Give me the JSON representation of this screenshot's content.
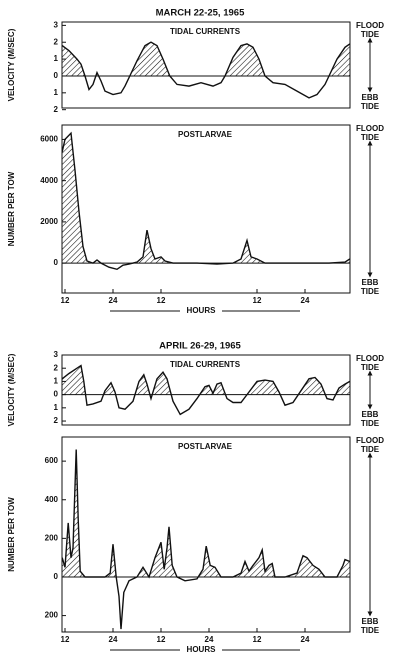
{
  "chart_data": [
    {
      "type": "area",
      "title": "MARCH 22-25, 1965",
      "label": "TIDAL CURRENTS",
      "ylabel": "VELOCITY (M/SEC)",
      "flood_label": [
        "FLOOD",
        "TIDE"
      ],
      "ebb_label": [
        "EBB",
        "TIDE"
      ],
      "x": [
        11.3,
        13,
        15,
        16,
        17,
        18,
        19,
        20,
        21,
        22,
        24,
        26,
        27,
        28.2,
        30,
        32,
        33.5,
        35,
        36.5,
        38.2,
        40,
        43,
        46,
        49,
        51,
        52,
        54,
        56,
        57.5,
        59,
        60.5,
        62,
        64,
        67,
        70,
        73,
        75,
        77,
        78,
        80,
        82,
        83.2
      ],
      "values": [
        1.8,
        1.5,
        1.0,
        0.7,
        0,
        -0.8,
        -0.5,
        0.2,
        -0.3,
        -0.9,
        -1.1,
        -1.0,
        -0.6,
        0,
        0.9,
        1.8,
        2.0,
        1.8,
        1.0,
        0,
        -0.5,
        -0.6,
        -0.4,
        -0.6,
        -0.4,
        0,
        1.1,
        1.8,
        1.9,
        1.7,
        1.0,
        0,
        -0.4,
        -0.5,
        -0.9,
        -1.3,
        -1.1,
        -0.5,
        0,
        1.0,
        1.7,
        1.9
      ],
      "xlim": [
        11.25,
        83.25
      ],
      "ylim": [
        -1.9,
        3.2
      ],
      "yticks": [
        3,
        2,
        1,
        0,
        {
          "value": -1,
          "label": "1"
        },
        {
          "value": -2,
          "label": "2"
        }
      ]
    },
    {
      "type": "area",
      "label": "POSTLARVAE",
      "ylabel": "NUMBER PER TOW",
      "xlabel": "HOURS",
      "flood_label": [
        "FLOOD",
        "TIDE"
      ],
      "ebb_label": [
        "EBB",
        "TIDE"
      ],
      "x": [
        11.3,
        12,
        13.5,
        14.5,
        15.5,
        16.5,
        17.5,
        19,
        20,
        21,
        23,
        25,
        26.5,
        28,
        30,
        31.5,
        32.5,
        33.5,
        34.5,
        36,
        37,
        39,
        45,
        50,
        54,
        56,
        57.5,
        58.5,
        60,
        62,
        66,
        72,
        78,
        82,
        83.2
      ],
      "values": [
        5400,
        6000,
        6300,
        4500,
        2500,
        800,
        100,
        0,
        150,
        0,
        -200,
        -300,
        -100,
        -50,
        50,
        300,
        1600,
        700,
        200,
        300,
        100,
        0,
        0,
        -50,
        0,
        200,
        1100,
        300,
        200,
        0,
        0,
        0,
        0,
        50,
        200
      ],
      "xlim": [
        11.25,
        83.25
      ],
      "ylim": [
        -1450,
        6700
      ],
      "yticks": [
        6000,
        4000,
        2000,
        0
      ],
      "xticks": [
        {
          "value": 12,
          "label": "12"
        },
        {
          "value": 24,
          "label": "24"
        },
        {
          "value": 36,
          "label": "12"
        },
        {
          "value": 60,
          "label": "12"
        },
        {
          "value": 72,
          "label": "24"
        }
      ]
    },
    {
      "type": "area",
      "title": "APRIL 26-29, 1965",
      "label": "TIDAL CURRENTS",
      "ylabel": "VELOCITY (M/SEC)",
      "flood_label": [
        "FLOOD",
        "TIDE"
      ],
      "ebb_label": [
        "EBB",
        "TIDE"
      ],
      "x": [
        11.3,
        13,
        15,
        16,
        16.7,
        17.5,
        19,
        21,
        22,
        23.5,
        24.5,
        25.5,
        27,
        29,
        30.5,
        31.7,
        32.5,
        33.5,
        35,
        36.5,
        37.5,
        39,
        40.8,
        43,
        45,
        47,
        48,
        49,
        50,
        51,
        52.5,
        54,
        56,
        58,
        60,
        62,
        64,
        65.5,
        67,
        69,
        71,
        73,
        74.5,
        76,
        77.5,
        79,
        80.5,
        82,
        83.2
      ],
      "values": [
        1.2,
        1.6,
        2.0,
        2.2,
        1.0,
        -0.8,
        -0.7,
        -0.5,
        0.3,
        0.9,
        0.2,
        -1.0,
        -1.1,
        -0.5,
        1.0,
        1.5,
        0.8,
        -0.3,
        1.2,
        1.7,
        1.2,
        -0.5,
        -1.5,
        -1.1,
        -0.3,
        0.6,
        0.7,
        0.1,
        0.8,
        0.9,
        -0.3,
        -0.6,
        -0.6,
        0.2,
        1.0,
        1.1,
        1.0,
        0.2,
        -0.8,
        -0.6,
        0.3,
        1.2,
        1.3,
        0.8,
        -0.3,
        -0.4,
        0.5,
        0.8,
        1.0
      ],
      "xlim": [
        11.25,
        83.25
      ],
      "ylim": [
        -2.3,
        3.0
      ],
      "yticks": [
        3,
        2,
        1,
        0,
        {
          "value": -1,
          "label": "1"
        },
        {
          "value": -2,
          "label": "2"
        }
      ]
    },
    {
      "type": "area",
      "label": "POSTLARVAE",
      "ylabel": "NUMBER PER TOW",
      "xlabel": "HOURS",
      "flood_label": [
        "FLOOD",
        "TIDE"
      ],
      "ebb_label": [
        "EBB",
        "TIDE"
      ],
      "x": [
        11.3,
        12,
        12.8,
        13.5,
        14,
        14.8,
        15.3,
        15.8,
        17,
        22,
        23.3,
        24,
        24.8,
        25.5,
        26,
        26.7,
        28,
        30,
        31.5,
        33,
        34.5,
        36,
        36.8,
        37.5,
        38,
        38.8,
        40,
        42,
        45,
        46.5,
        47.3,
        48.3,
        49.5,
        51,
        54,
        56,
        57,
        58,
        59,
        60.5,
        61.3,
        62,
        63,
        63.8,
        64.5,
        67,
        70,
        71.5,
        72.5,
        74,
        75.5,
        77,
        80,
        81.5,
        82,
        83.2
      ],
      "values": [
        100,
        50,
        280,
        100,
        150,
        660,
        300,
        30,
        0,
        0,
        20,
        170,
        0,
        -100,
        -270,
        -80,
        -20,
        0,
        50,
        0,
        100,
        180,
        40,
        150,
        260,
        60,
        0,
        -20,
        -10,
        40,
        160,
        60,
        50,
        0,
        0,
        20,
        80,
        30,
        60,
        100,
        140,
        30,
        60,
        70,
        0,
        0,
        20,
        110,
        100,
        60,
        40,
        0,
        0,
        60,
        90,
        80
      ],
      "xlim": [
        11.25,
        83.25
      ],
      "ylim": [
        -285,
        725
      ],
      "yticks": [
        600,
        400,
        200,
        0,
        {
          "value": -200,
          "label": "200"
        }
      ],
      "xticks": [
        {
          "value": 12,
          "label": "12"
        },
        {
          "value": 24,
          "label": "24"
        },
        {
          "value": 36,
          "label": "12"
        },
        {
          "value": 48,
          "label": "24"
        },
        {
          "value": 60,
          "label": "12"
        },
        {
          "value": 72,
          "label": "24"
        }
      ]
    }
  ]
}
